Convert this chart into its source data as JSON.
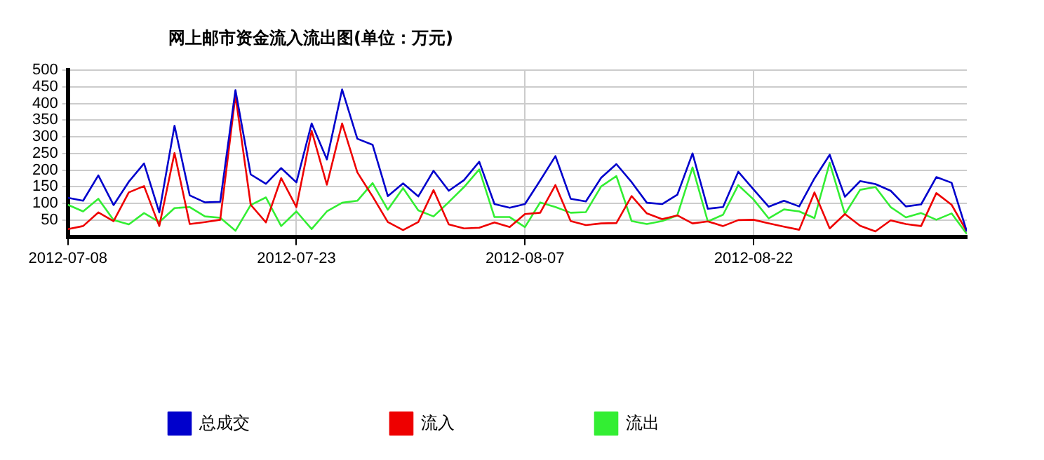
{
  "chart_data": {
    "type": "line",
    "title": "网上邮市资金流入流出图(单位：万元)",
    "x": [
      "2012-07-08",
      "2012-07-09",
      "2012-07-10",
      "2012-07-11",
      "2012-07-12",
      "2012-07-13",
      "2012-07-14",
      "2012-07-15",
      "2012-07-16",
      "2012-07-17",
      "2012-07-18",
      "2012-07-19",
      "2012-07-20",
      "2012-07-21",
      "2012-07-22",
      "2012-07-23",
      "2012-07-24",
      "2012-07-25",
      "2012-07-26",
      "2012-07-27",
      "2012-07-28",
      "2012-07-29",
      "2012-07-30",
      "2012-07-31",
      "2012-08-01",
      "2012-08-02",
      "2012-08-03",
      "2012-08-04",
      "2012-08-05",
      "2012-08-06",
      "2012-08-07",
      "2012-08-08",
      "2012-08-09",
      "2012-08-10",
      "2012-08-11",
      "2012-08-12",
      "2012-08-13",
      "2012-08-14",
      "2012-08-15",
      "2012-08-16",
      "2012-08-17",
      "2012-08-18",
      "2012-08-19",
      "2012-08-20",
      "2012-08-21",
      "2012-08-22",
      "2012-08-23",
      "2012-08-24",
      "2012-08-25",
      "2012-08-26",
      "2012-08-27",
      "2012-08-28",
      "2012-08-29",
      "2012-08-30",
      "2012-08-31",
      "2012-09-01",
      "2012-09-02",
      "2012-09-03",
      "2012-09-04",
      "2012-09-05"
    ],
    "series": [
      {
        "name": "总成交",
        "color": "#0000cc",
        "values": [
          117,
          108,
          184,
          95,
          165,
          220,
          73,
          333,
          124,
          103,
          105,
          440,
          187,
          159,
          206,
          163,
          340,
          232,
          442,
          294,
          276,
          122,
          160,
          121,
          198,
          138,
          170,
          225,
          98,
          87,
          98,
          169,
          242,
          114,
          106,
          177,
          218,
          164,
          102,
          98,
          126,
          250,
          84,
          89,
          195,
          142,
          90,
          108,
          91,
          175,
          246,
          120,
          167,
          158,
          138,
          91,
          97,
          179,
          162,
          16
        ]
      },
      {
        "name": "流入",
        "color": "#ee0000",
        "values": [
          23,
          32,
          73,
          47,
          133,
          152,
          32,
          251,
          38,
          44,
          51,
          424,
          96,
          43,
          176,
          89,
          318,
          156,
          340,
          193,
          121,
          44,
          20,
          44,
          140,
          37,
          25,
          27,
          43,
          29,
          68,
          72,
          155,
          47,
          35,
          40,
          41,
          122,
          70,
          53,
          64,
          40,
          46,
          32,
          50,
          51,
          40,
          30,
          21,
          133,
          25,
          68,
          33,
          16,
          49,
          38,
          32,
          131,
          96,
          16
        ]
      },
      {
        "name": "流出",
        "color": "#33ee33",
        "values": [
          96,
          76,
          114,
          50,
          37,
          71,
          44,
          86,
          89,
          61,
          57,
          18,
          95,
          118,
          32,
          76,
          23,
          76,
          102,
          108,
          161,
          81,
          146,
          79,
          61,
          104,
          149,
          202,
          59,
          59,
          29,
          103,
          89,
          72,
          74,
          151,
          182,
          47,
          38,
          47,
          64,
          208,
          46,
          66,
          155,
          112,
          55,
          82,
          76,
          56,
          222,
          68,
          141,
          149,
          89,
          58,
          71,
          51,
          70,
          8
        ]
      }
    ],
    "xlim": [
      "2012-07-08",
      "2012-09-05"
    ],
    "xticks": [
      "2012-07-08",
      "2012-07-23",
      "2012-08-07",
      "2012-08-22"
    ],
    "ylim": [
      0,
      500
    ],
    "yticks": [
      50,
      100,
      150,
      200,
      250,
      300,
      350,
      400,
      450,
      500
    ],
    "grid": true,
    "legend": "bottom",
    "marker": "none",
    "line_style": "solid"
  }
}
